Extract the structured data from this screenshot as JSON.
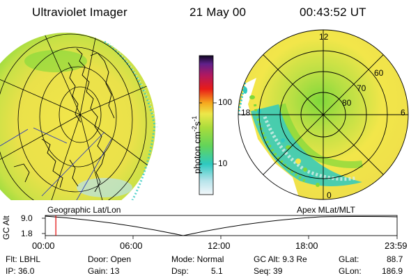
{
  "header": {
    "instrument": "Ultraviolet Imager",
    "date": "21 May 00",
    "time": "00:43:52 UT"
  },
  "colorbar": {
    "unit_label": "photon cm",
    "unit_exp1": "-2",
    "unit_s": "s",
    "unit_exp2": "-1",
    "ticks": [
      "100",
      "10"
    ]
  },
  "polar_plot": {
    "mlt_labels": [
      "12",
      "18",
      "6",
      "0"
    ],
    "lat_labels": [
      "60",
      "70",
      "80"
    ]
  },
  "altitude_plot": {
    "axis_label": "GC Alt",
    "y_ticks": [
      "9.0",
      "1.8"
    ],
    "left_title": "Geographic Lat/Lon",
    "right_title": "Apex MLat/MLT",
    "x_ticks": [
      "00:00",
      "06:00",
      "12:00",
      "18:00",
      "23:59"
    ],
    "marker_time_fraction": 0.03
  },
  "footer": {
    "flt": "Flt: LBHL",
    "ip": "IP: 36.0",
    "door": "Door: Open",
    "gain": "Gain: 13",
    "mode": "Mode: Normal",
    "dsp_label": "Dsp:",
    "dsp_value": "5.1",
    "gc_alt": "GC Alt: 9.3 Re",
    "seq": "Seq: 39",
    "glat_label": "GLat:",
    "glat_value": "88.7",
    "glon_label": "GLon:",
    "glon_value": "186.9"
  },
  "colors": {
    "yellow": "#f2e64a",
    "green": "#7fd83a",
    "cyan": "#2ec9c0",
    "pale": "#d7efe9",
    "marker": "#e00000"
  }
}
